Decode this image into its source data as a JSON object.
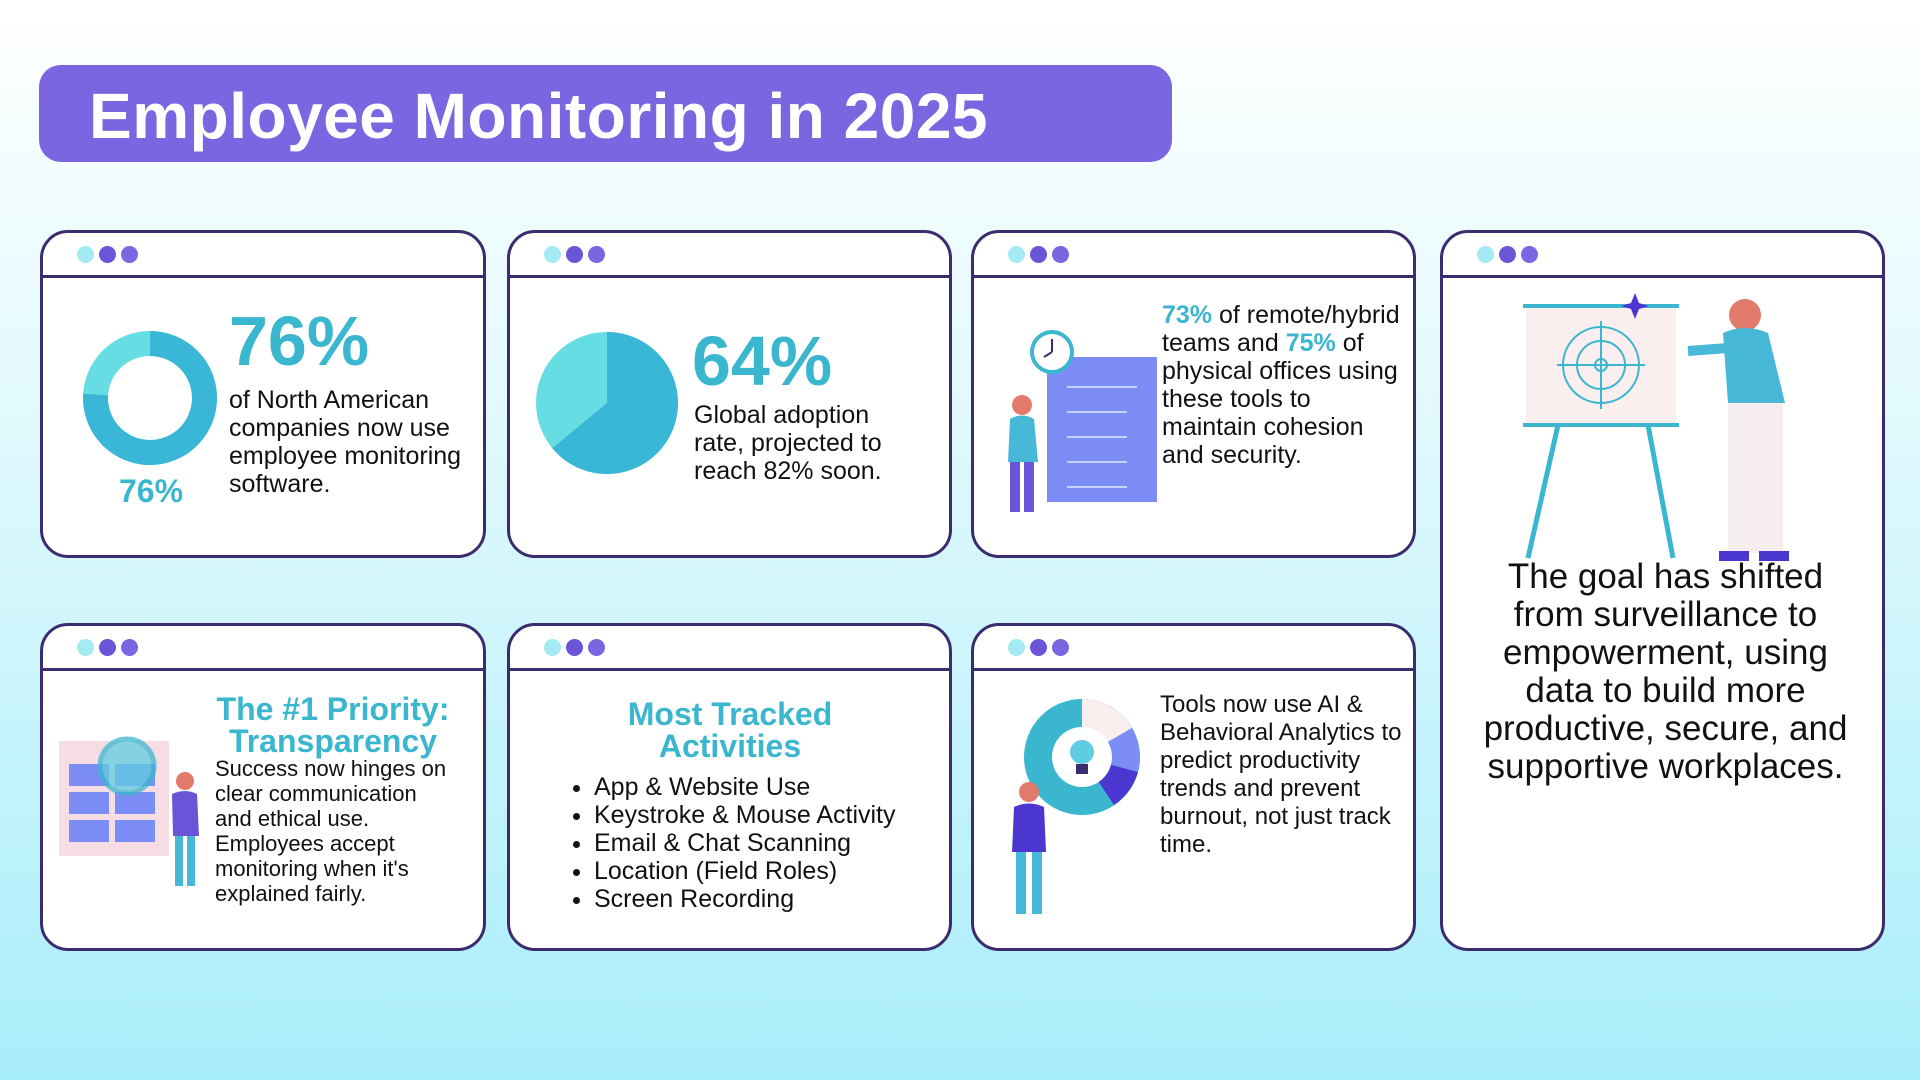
{
  "title": "Employee Monitoring in 2025",
  "cards": [
    {
      "stat": "76%",
      "donut_value": 76,
      "donut_label": "76%",
      "text": "of North American companies now use employee monitoring software."
    },
    {
      "stat": "64%",
      "pie_value": 64,
      "text": "Global adoption rate, projected to reach 82% soon."
    },
    {
      "parts": [
        "73%",
        "of remote/hybrid teams and",
        "75%",
        "of physical offices using these tools to maintain cohesion and security."
      ]
    },
    {
      "text": "The goal has shifted from surveillance to empowerment, using data to build more productive, secure, and supportive workplaces."
    },
    {
      "heading": "The #1 Priority: Transparency",
      "text": "Success now hinges on clear communication and ethical use. Employees accept monitoring when it's explained fairly."
    },
    {
      "heading": "Most Tracked Activities",
      "items": [
        "App & Website Use",
        "Keystroke & Mouse Activity",
        "Email & Chat Scanning",
        "Location (Field Roles)",
        "Screen Recording"
      ]
    },
    {
      "text": "Tools now use AI & Behavioral Analytics to predict productivity trends and prevent burnout, not just track time."
    }
  ]
}
